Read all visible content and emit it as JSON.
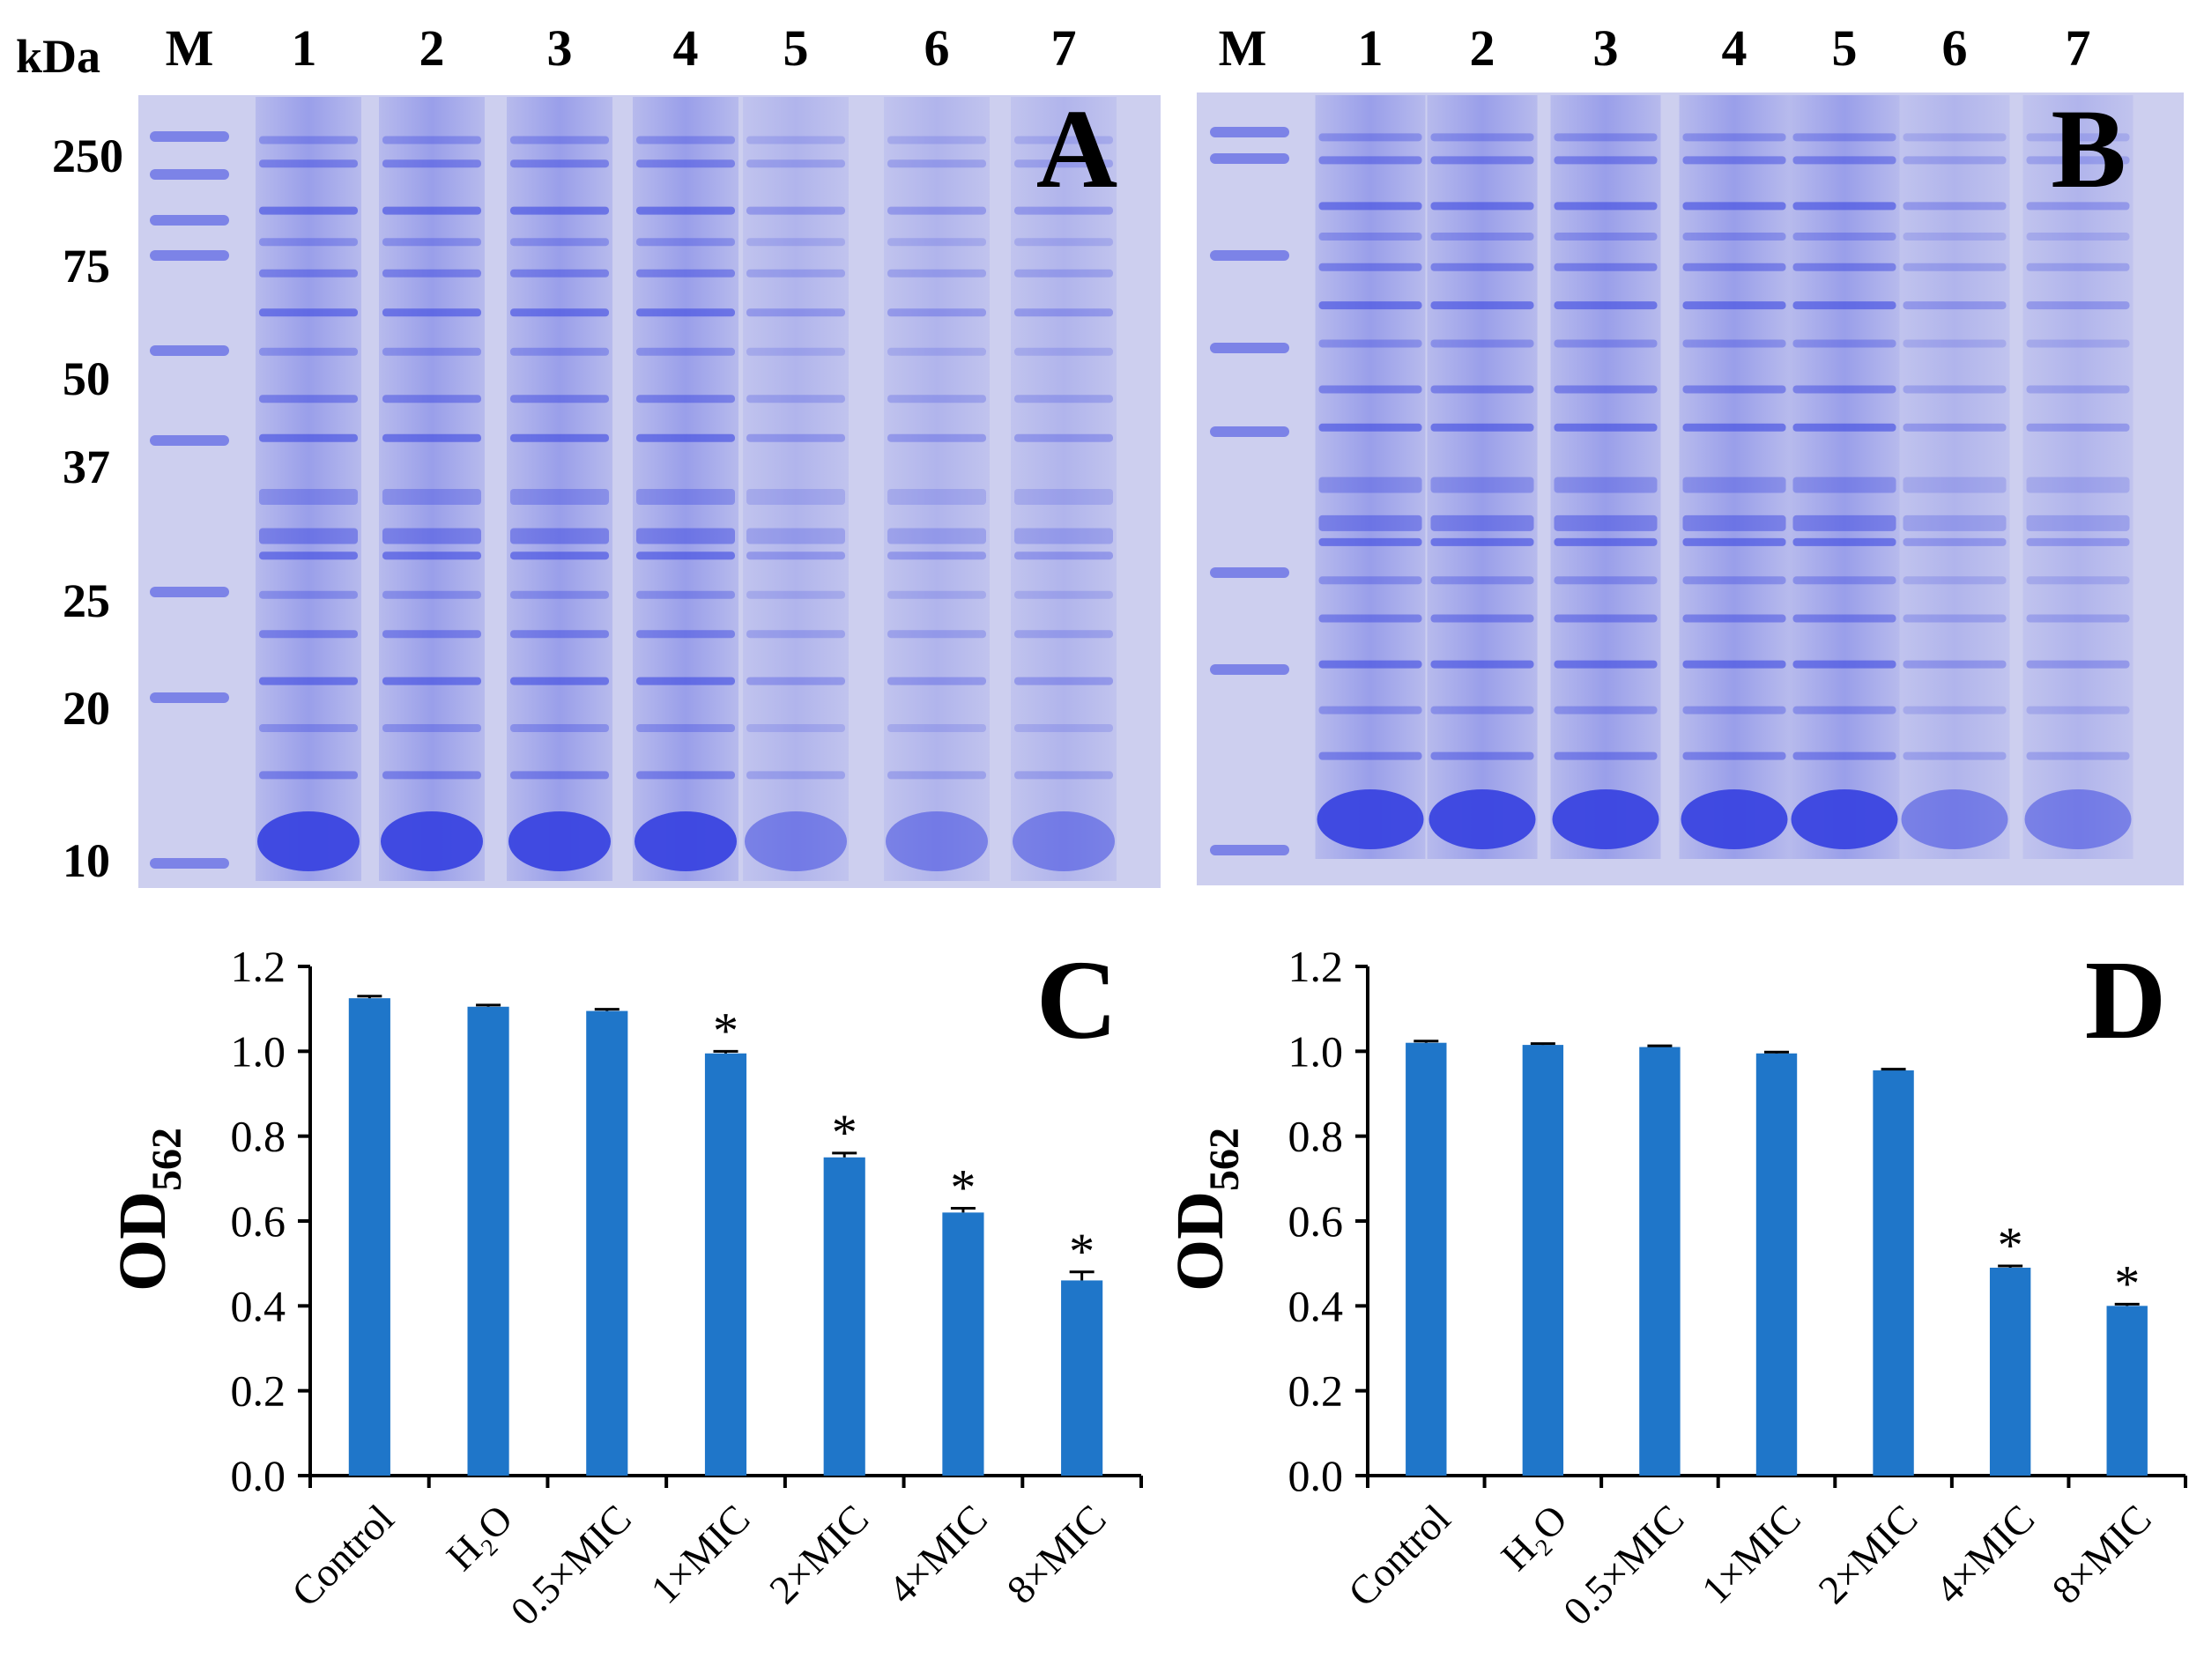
{
  "gels": [
    {
      "panel": "A",
      "lane_header": [
        "M",
        "1",
        "2",
        "3",
        "4",
        "5",
        "6",
        "7"
      ],
      "unit_label": "kDa",
      "marker_sizes": [
        "250",
        "75",
        "50",
        "37",
        "25",
        "20",
        "10"
      ]
    },
    {
      "panel": "B",
      "lane_header": [
        "M",
        "1",
        "2",
        "3",
        "4",
        "5",
        "6",
        "7"
      ]
    }
  ],
  "colors": {
    "gel_background": "#cdcfef",
    "band": "#3a45e0",
    "bar": "#1f76c9",
    "axis": "#000000"
  },
  "chart_data": [
    {
      "panel": "C",
      "type": "bar",
      "categories": [
        "Control",
        "H₂O",
        "0.5×MIC",
        "1×MIC",
        "2×MIC",
        "4×MIC",
        "8×MIC"
      ],
      "values": [
        1.125,
        1.105,
        1.095,
        0.995,
        0.75,
        0.62,
        0.46
      ],
      "errors": [
        0.005,
        0.004,
        0.004,
        0.005,
        0.01,
        0.01,
        0.02
      ],
      "significant": [
        false,
        false,
        false,
        true,
        true,
        true,
        true
      ],
      "significance_marker": "*",
      "ylabel": "OD",
      "ylabel_subscript": "562",
      "ylim": [
        0,
        1.2
      ],
      "yticks": [
        "0.0",
        "0.2",
        "0.4",
        "0.6",
        "0.8",
        "1.0",
        "1.2"
      ],
      "grid": false
    },
    {
      "panel": "D",
      "type": "bar",
      "categories": [
        "Control",
        "H₂O",
        "0.5×MIC",
        "1×MIC",
        "2×MIC",
        "4×MIC",
        "8×MIC"
      ],
      "values": [
        1.02,
        1.015,
        1.01,
        0.995,
        0.955,
        0.49,
        0.4
      ],
      "errors": [
        0.004,
        0.003,
        0.003,
        0.003,
        0.003,
        0.004,
        0.004
      ],
      "significant": [
        false,
        false,
        false,
        false,
        false,
        true,
        true
      ],
      "significance_marker": "*",
      "ylabel": "OD",
      "ylabel_subscript": "562",
      "ylim": [
        0,
        1.2
      ],
      "yticks": [
        "0.0",
        "0.2",
        "0.4",
        "0.6",
        "0.8",
        "1.0",
        "1.2"
      ],
      "grid": false
    }
  ]
}
